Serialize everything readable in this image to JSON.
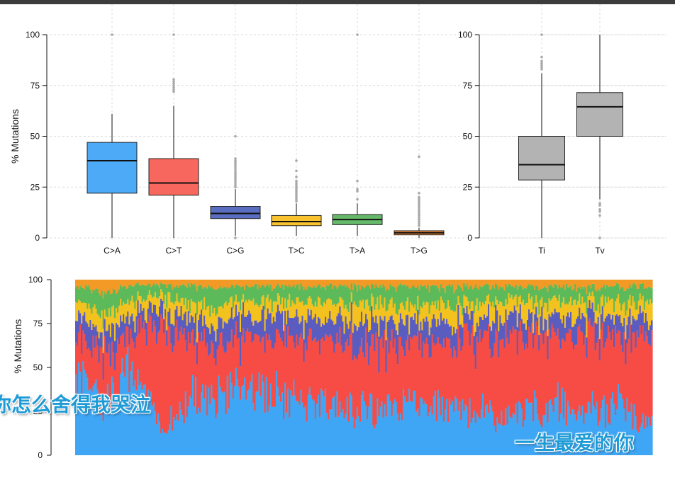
{
  "chart_data": [
    {
      "type": "boxplot",
      "ylabel": "% Mutations",
      "ylim": [
        0,
        100
      ],
      "yticks": [
        0,
        25,
        50,
        75,
        100
      ],
      "grid": true,
      "categories": [
        "C>A",
        "C>T",
        "C>G",
        "T>C",
        "T>A",
        "T>G"
      ],
      "colors": [
        "#4DAAF7",
        "#F8675E",
        "#5A6EC1",
        "#F9C22F",
        "#66B96A",
        "#F08A32"
      ],
      "boxes": [
        {
          "label": "C>A",
          "whisker_low": 0,
          "q1": 22,
          "median": 38,
          "q3": 47,
          "whisker_high": 61,
          "outliers": [
            100
          ]
        },
        {
          "label": "C>T",
          "whisker_low": 0,
          "q1": 21,
          "median": 27,
          "q3": 39,
          "whisker_high": 65,
          "outliers": [
            72,
            73,
            74,
            75,
            76,
            77,
            78,
            100
          ]
        },
        {
          "label": "C>G",
          "whisker_low": 1,
          "q1": 9.5,
          "median": 12,
          "q3": 15.5,
          "whisker_high": 24,
          "outliers": [
            25,
            26,
            27,
            28,
            29,
            30,
            31,
            32,
            33,
            34,
            35,
            36,
            37,
            38,
            39,
            50,
            0
          ]
        },
        {
          "label": "T>C",
          "whisker_low": 1,
          "q1": 6,
          "median": 8,
          "q3": 11,
          "whisker_high": 17,
          "outliers": [
            18,
            19,
            20,
            21,
            22,
            23,
            24,
            25,
            26,
            27,
            28,
            30,
            33,
            38
          ]
        },
        {
          "label": "T>A",
          "whisker_low": 1,
          "q1": 6.5,
          "median": 9,
          "q3": 11.5,
          "whisker_high": 17,
          "outliers": [
            19,
            23,
            24,
            28,
            100
          ]
        },
        {
          "label": "T>G",
          "whisker_low": 0,
          "q1": 1.5,
          "median": 2.5,
          "q3": 3.5,
          "whisker_high": 5,
          "outliers": [
            6,
            7,
            8,
            9,
            10,
            11,
            12,
            13,
            14,
            15,
            16,
            17,
            18,
            19,
            20,
            22,
            40
          ]
        }
      ]
    },
    {
      "type": "boxplot",
      "ylim": [
        0,
        100
      ],
      "yticks": [
        0,
        25,
        50,
        75,
        100
      ],
      "grid": true,
      "categories": [
        "Ti",
        "Tv"
      ],
      "colors": [
        "#B3B3B3",
        "#B3B3B3"
      ],
      "boxes": [
        {
          "label": "Ti",
          "whisker_low": 0,
          "q1": 28.5,
          "median": 36,
          "q3": 50,
          "whisker_high": 81,
          "outliers": [
            83,
            84,
            85,
            86,
            87,
            89,
            100
          ]
        },
        {
          "label": "Tv",
          "whisker_low": 19,
          "q1": 50,
          "median": 64.5,
          "q3": 71.5,
          "whisker_high": 100,
          "outliers": [
            0,
            11,
            13,
            14,
            16,
            17
          ]
        }
      ]
    },
    {
      "type": "bar",
      "stacked": true,
      "ylabel": "% Mutations",
      "ylim": [
        0,
        100
      ],
      "yticks": [
        0,
        25,
        50,
        75,
        100
      ],
      "series_order": [
        "C>A",
        "C>T",
        "C>G",
        "T>C",
        "T>A",
        "T>G"
      ],
      "colors": [
        "#3EA6F5",
        "#F64C45",
        "#5A5DBF",
        "#F4C21E",
        "#5DBA5A",
        "#F39A26"
      ],
      "n_samples": 400,
      "profile_points": [
        [
          0,
          44,
          24,
          12,
          8,
          8,
          4
        ],
        [
          0.05,
          32,
          26,
          12,
          10,
          13,
          7
        ],
        [
          0.1,
          50,
          20,
          10,
          8,
          9,
          3
        ],
        [
          0.15,
          14,
          60,
          9,
          8,
          6,
          3
        ],
        [
          0.2,
          30,
          35,
          12,
          9,
          10,
          4
        ],
        [
          0.3,
          38,
          28,
          12,
          9,
          9,
          4
        ],
        [
          0.4,
          30,
          34,
          13,
          10,
          9,
          4
        ],
        [
          0.5,
          26,
          38,
          13,
          10,
          9,
          4
        ],
        [
          0.6,
          30,
          34,
          12,
          10,
          10,
          4
        ],
        [
          0.7,
          22,
          44,
          12,
          9,
          9,
          4
        ],
        [
          0.8,
          26,
          42,
          11,
          9,
          8,
          4
        ],
        [
          0.9,
          28,
          40,
          11,
          9,
          8,
          4
        ],
        [
          1,
          22,
          46,
          10,
          9,
          9,
          4
        ]
      ]
    }
  ],
  "subtitles": {
    "left": "你怎么舍得我哭泣",
    "right": "一生最爱的你"
  }
}
